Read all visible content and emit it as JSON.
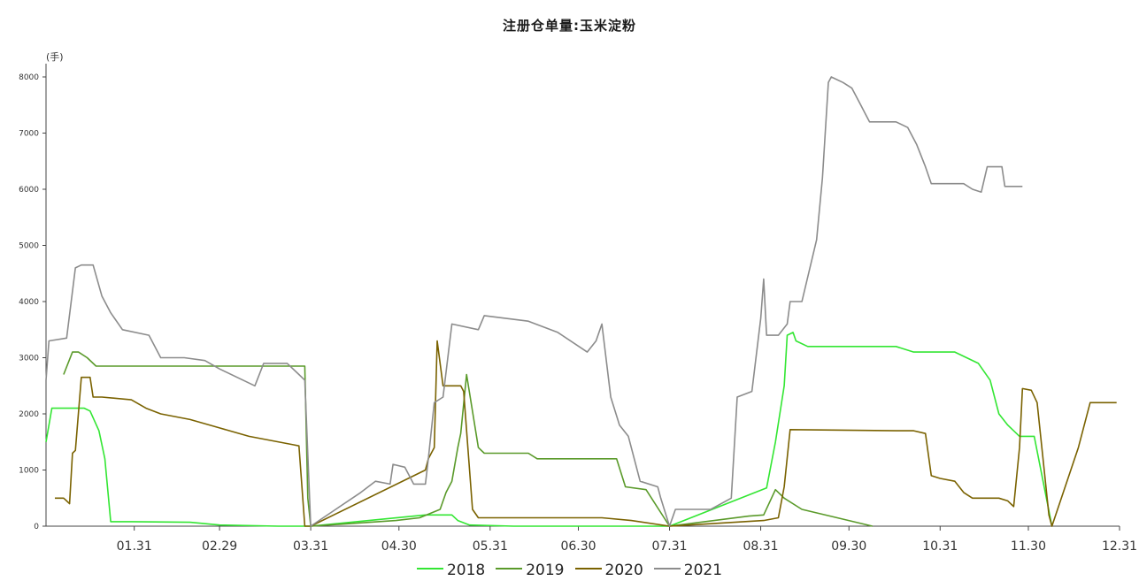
{
  "chart_data": {
    "type": "line",
    "title": "注册仓单量:玉米淀粉",
    "unit": "(手)",
    "xlabel": "",
    "ylabel": "",
    "ylim": [
      0,
      8000
    ],
    "yticks": [
      "0",
      "1000",
      "2000",
      "3000",
      "4000",
      "5000",
      "6000",
      "7000",
      "8000"
    ],
    "xlim": [
      1,
      365
    ],
    "xticks": [
      {
        "label": "01.31",
        "day": 31
      },
      {
        "label": "02.29",
        "day": 60
      },
      {
        "label": "03.31",
        "day": 91
      },
      {
        "label": "04.30",
        "day": 121
      },
      {
        "label": "05.31",
        "day": 152
      },
      {
        "label": "06.30",
        "day": 182
      },
      {
        "label": "07.31",
        "day": 213
      },
      {
        "label": "08.31",
        "day": 244
      },
      {
        "label": "09.30",
        "day": 274
      },
      {
        "label": "10.31",
        "day": 305
      },
      {
        "label": "11.30",
        "day": 335
      },
      {
        "label": "12.31",
        "day": 366
      }
    ],
    "legend_position": "bottom",
    "series": [
      {
        "name": "2018",
        "color": "#33e633",
        "points": [
          [
            1,
            1500
          ],
          [
            3,
            2100
          ],
          [
            14,
            2100
          ],
          [
            16,
            2050
          ],
          [
            19,
            1700
          ],
          [
            21,
            1200
          ],
          [
            23,
            80
          ],
          [
            30,
            80
          ],
          [
            50,
            70
          ],
          [
            60,
            20
          ],
          [
            80,
            0
          ],
          [
            91,
            0
          ],
          [
            130,
            200
          ],
          [
            139,
            200
          ],
          [
            141,
            100
          ],
          [
            145,
            20
          ],
          [
            160,
            0
          ],
          [
            213,
            0
          ],
          [
            246,
            680
          ],
          [
            249,
            1500
          ],
          [
            252,
            2500
          ],
          [
            253,
            3400
          ],
          [
            255,
            3450
          ],
          [
            256,
            3300
          ],
          [
            260,
            3200
          ],
          [
            290,
            3200
          ],
          [
            296,
            3100
          ],
          [
            310,
            3100
          ],
          [
            314,
            3000
          ],
          [
            318,
            2900
          ],
          [
            322,
            2600
          ],
          [
            325,
            2000
          ],
          [
            328,
            1800
          ],
          [
            332,
            1600
          ],
          [
            337,
            1600
          ],
          [
            340,
            800
          ],
          [
            343,
            0
          ]
        ]
      },
      {
        "name": "2019",
        "color": "#5a9a2a",
        "points": [
          [
            7,
            2700
          ],
          [
            10,
            3100
          ],
          [
            12,
            3100
          ],
          [
            15,
            3000
          ],
          [
            18,
            2850
          ],
          [
            40,
            2850
          ],
          [
            89,
            2850
          ],
          [
            90,
            500
          ],
          [
            91,
            0
          ],
          [
            120,
            100
          ],
          [
            128,
            150
          ],
          [
            135,
            300
          ],
          [
            137,
            600
          ],
          [
            139,
            800
          ],
          [
            141,
            1400
          ],
          [
            142,
            1650
          ],
          [
            144,
            2700
          ],
          [
            148,
            1400
          ],
          [
            150,
            1300
          ],
          [
            165,
            1300
          ],
          [
            168,
            1200
          ],
          [
            195,
            1200
          ],
          [
            198,
            700
          ],
          [
            205,
            650
          ],
          [
            213,
            0
          ],
          [
            240,
            180
          ],
          [
            245,
            200
          ],
          [
            249,
            650
          ],
          [
            252,
            500
          ],
          [
            258,
            300
          ],
          [
            270,
            150
          ],
          [
            282,
            0
          ]
        ]
      },
      {
        "name": "2020",
        "color": "#7a6200",
        "points": [
          [
            4,
            500
          ],
          [
            7,
            500
          ],
          [
            8,
            450
          ],
          [
            9,
            400
          ],
          [
            10,
            1300
          ],
          [
            11,
            1350
          ],
          [
            13,
            2650
          ],
          [
            16,
            2650
          ],
          [
            17,
            2300
          ],
          [
            20,
            2300
          ],
          [
            30,
            2250
          ],
          [
            35,
            2100
          ],
          [
            40,
            2000
          ],
          [
            50,
            1900
          ],
          [
            60,
            1750
          ],
          [
            70,
            1600
          ],
          [
            85,
            1450
          ],
          [
            87,
            1430
          ],
          [
            89,
            0
          ],
          [
            91,
            0
          ],
          [
            130,
            1000
          ],
          [
            131,
            1200
          ],
          [
            133,
            1400
          ],
          [
            134,
            3300
          ],
          [
            136,
            2500
          ],
          [
            142,
            2500
          ],
          [
            143,
            2400
          ],
          [
            146,
            300
          ],
          [
            148,
            150
          ],
          [
            190,
            150
          ],
          [
            200,
            100
          ],
          [
            213,
            0
          ],
          [
            245,
            100
          ],
          [
            250,
            150
          ],
          [
            252,
            700
          ],
          [
            254,
            1720
          ],
          [
            290,
            1700
          ],
          [
            296,
            1700
          ],
          [
            300,
            1650
          ],
          [
            302,
            900
          ],
          [
            305,
            850
          ],
          [
            310,
            800
          ],
          [
            313,
            600
          ],
          [
            316,
            500
          ],
          [
            325,
            500
          ],
          [
            328,
            450
          ],
          [
            330,
            350
          ],
          [
            332,
            1400
          ],
          [
            333,
            2450
          ],
          [
            336,
            2420
          ],
          [
            338,
            2200
          ],
          [
            342,
            200
          ],
          [
            343,
            0
          ],
          [
            352,
            1400
          ],
          [
            356,
            2200
          ],
          [
            365,
            2200
          ]
        ]
      },
      {
        "name": "2021",
        "color": "#8c8c8c",
        "points": [
          [
            1,
            2600
          ],
          [
            2,
            3300
          ],
          [
            8,
            3350
          ],
          [
            11,
            4600
          ],
          [
            13,
            4650
          ],
          [
            17,
            4650
          ],
          [
            20,
            4100
          ],
          [
            23,
            3800
          ],
          [
            27,
            3500
          ],
          [
            36,
            3400
          ],
          [
            40,
            3000
          ],
          [
            48,
            3000
          ],
          [
            55,
            2950
          ],
          [
            60,
            2800
          ],
          [
            72,
            2500
          ],
          [
            75,
            2900
          ],
          [
            83,
            2900
          ],
          [
            87,
            2700
          ],
          [
            89,
            2600
          ],
          [
            91,
            0
          ],
          [
            108,
            600
          ],
          [
            113,
            800
          ],
          [
            118,
            750
          ],
          [
            119,
            1100
          ],
          [
            123,
            1050
          ],
          [
            126,
            750
          ],
          [
            130,
            750
          ],
          [
            131,
            1200
          ],
          [
            133,
            2200
          ],
          [
            136,
            2300
          ],
          [
            139,
            3600
          ],
          [
            148,
            3500
          ],
          [
            150,
            3750
          ],
          [
            165,
            3650
          ],
          [
            175,
            3450
          ],
          [
            185,
            3100
          ],
          [
            188,
            3300
          ],
          [
            190,
            3600
          ],
          [
            193,
            2300
          ],
          [
            196,
            1800
          ],
          [
            199,
            1600
          ],
          [
            203,
            800
          ],
          [
            209,
            700
          ],
          [
            210,
            500
          ],
          [
            213,
            0
          ],
          [
            215,
            300
          ],
          [
            227,
            300
          ],
          [
            234,
            500
          ],
          [
            236,
            2300
          ],
          [
            241,
            2400
          ],
          [
            244,
            3700
          ],
          [
            245,
            4400
          ],
          [
            246,
            3400
          ],
          [
            250,
            3400
          ],
          [
            253,
            3600
          ],
          [
            254,
            4000
          ],
          [
            258,
            4000
          ],
          [
            263,
            5100
          ],
          [
            265,
            6200
          ],
          [
            267,
            7900
          ],
          [
            268,
            8000
          ],
          [
            272,
            7900
          ],
          [
            275,
            7800
          ],
          [
            278,
            7500
          ],
          [
            281,
            7200
          ],
          [
            290,
            7200
          ],
          [
            294,
            7100
          ],
          [
            297,
            6800
          ],
          [
            300,
            6400
          ],
          [
            302,
            6100
          ],
          [
            313,
            6100
          ],
          [
            316,
            6000
          ],
          [
            319,
            5950
          ],
          [
            321,
            6400
          ],
          [
            326,
            6400
          ],
          [
            327,
            6050
          ],
          [
            333,
            6050
          ]
        ]
      }
    ]
  }
}
